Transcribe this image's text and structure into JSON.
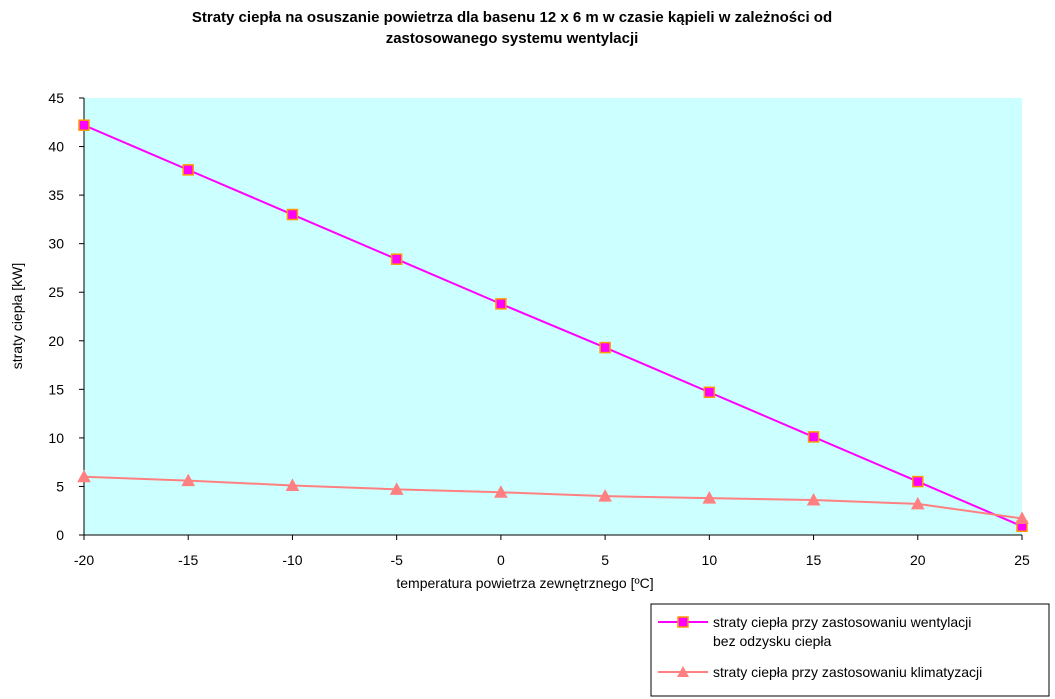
{
  "chart_data": {
    "type": "line",
    "title_lines": [
      "Straty ciepła na osuszanie powietrza dla basenu 12 x 6 m w czasie kąpieli w zależności od",
      "zastosowanego systemu wentylacji"
    ],
    "xlabel": "temperatura powietrza zewnętrznego [ºC]",
    "ylabel": "straty ciepła [kW]",
    "x": [
      -20,
      -15,
      -10,
      -5,
      0,
      5,
      10,
      15,
      20,
      25
    ],
    "xlim": [
      -20,
      25
    ],
    "ylim": [
      0,
      45
    ],
    "x_ticks": [
      -20,
      -15,
      -10,
      -5,
      0,
      5,
      10,
      15,
      20,
      25
    ],
    "y_ticks": [
      0,
      5,
      10,
      15,
      20,
      25,
      30,
      35,
      40,
      45
    ],
    "plot_background": "#ccffff",
    "grid": false,
    "legend_position": "bottom-right",
    "series": [
      {
        "name_lines": [
          "straty ciepła przy zastosowaniu wentylacji",
          "bez odzysku ciepła"
        ],
        "values": [
          42.2,
          37.6,
          33.0,
          28.4,
          23.8,
          19.3,
          14.7,
          10.1,
          5.5,
          0.9
        ],
        "line_color": "#ff00ff",
        "marker": "square",
        "marker_fill": "#ff00ff",
        "marker_stroke": "#ff9900"
      },
      {
        "name_lines": [
          "straty ciepła przy zastosowaniu klimatyzacji"
        ],
        "values": [
          6.0,
          5.6,
          5.1,
          4.7,
          4.4,
          4.0,
          3.8,
          3.6,
          3.2,
          1.7
        ],
        "line_color": "#ff8080",
        "marker": "triangle",
        "marker_fill": "#ff8080",
        "marker_stroke": "#ff8080"
      }
    ]
  }
}
